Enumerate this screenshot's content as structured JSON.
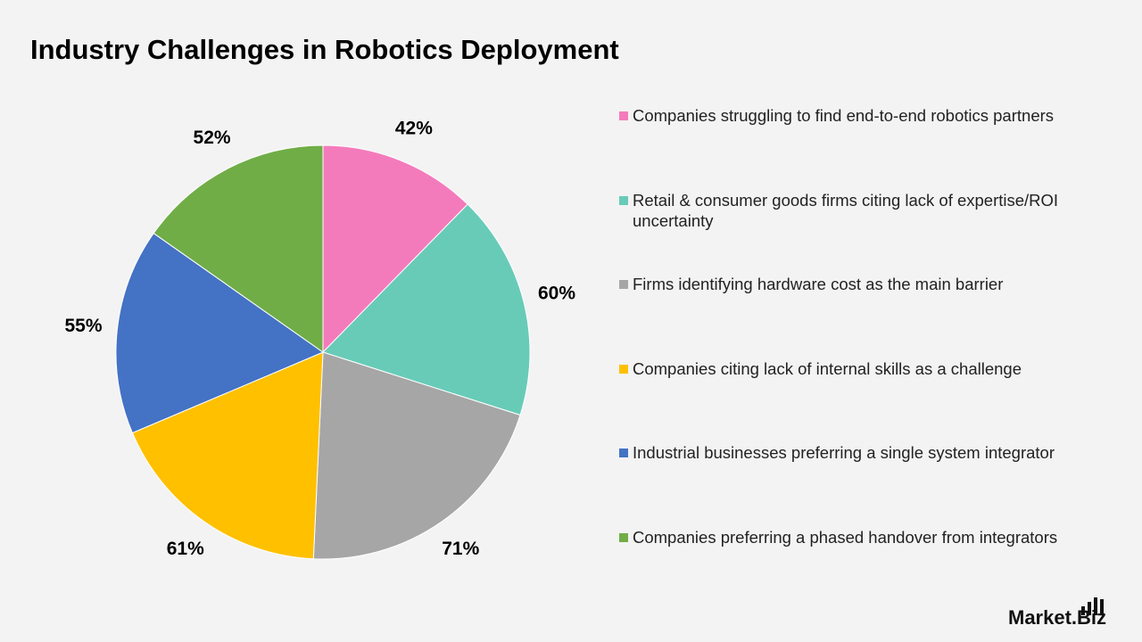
{
  "chart_data": {
    "type": "pie",
    "title": "Industry Challenges in Robotics Deployment",
    "categories": [
      "Companies struggling to find end-to-end robotics partners",
      "Retail & consumer goods firms citing lack of expertise/ROI uncertainty",
      "Firms identifying hardware cost as the main barrier",
      "Companies citing lack of internal skills as a challenge",
      "Industrial businesses preferring a single system integrator",
      "Companies preferring a phased handover from integrators"
    ],
    "values": [
      42,
      60,
      71,
      61,
      55,
      52
    ],
    "value_labels": [
      "42%",
      "60%",
      "71%",
      "61%",
      "55%",
      "52%"
    ],
    "colors": [
      "#f47bbb",
      "#68cbb8",
      "#a6a6a6",
      "#ffc000",
      "#4472c4",
      "#70ad47"
    ],
    "legend": "right"
  },
  "brand": "Market.Biz"
}
